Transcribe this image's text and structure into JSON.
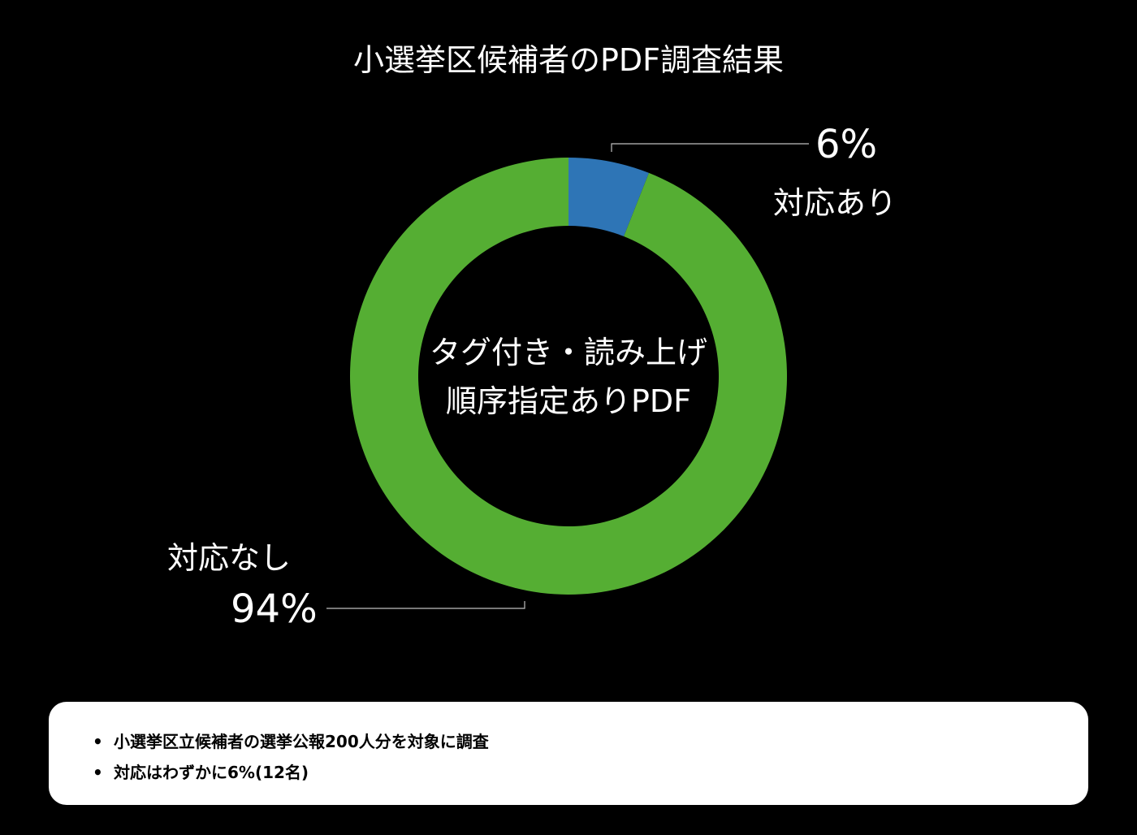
{
  "title": "小選挙区候補者のPDF調査結果",
  "chart_data": {
    "type": "pie",
    "variant": "donut",
    "title": "小選挙区候補者のPDF調査結果",
    "center_label": [
      "タグ付き・読み上げ",
      "順序指定ありPDF"
    ],
    "slices": [
      {
        "label": "対応あり",
        "value": 6,
        "value_label": "6%",
        "color": "#2e75b6"
      },
      {
        "label": "対応なし",
        "value": 94,
        "value_label": "94%",
        "color": "#55ae33"
      }
    ],
    "start": "12 o'clock",
    "direction": "clockwise",
    "legend": "none"
  },
  "notes": [
    "小選挙区立候補者の選挙公報200人分を対象に調査",
    "対応はわずかに6%(12名)"
  ],
  "bullet": "•",
  "colors": {
    "background": "#000000",
    "text": "#ffffff",
    "leader_line": "#bfbfbf",
    "notes_background": "#ffffff"
  }
}
